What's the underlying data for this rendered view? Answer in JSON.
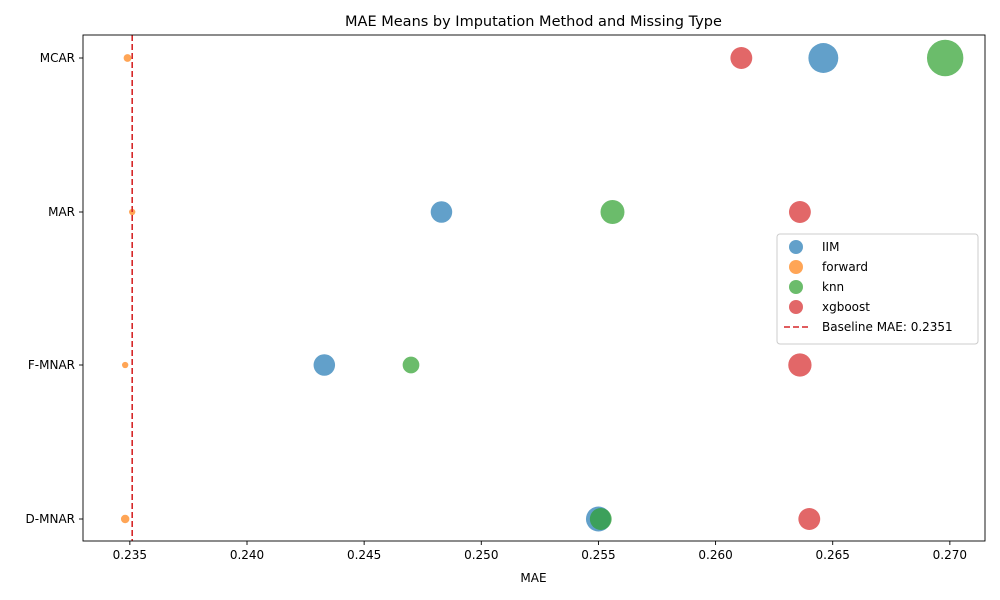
{
  "chart_data": {
    "type": "scatter",
    "title": "MAE Means by Imputation Method and Missing Type",
    "xlabel": "MAE",
    "ylabel": "",
    "xlim": [
      0.233,
      0.2715
    ],
    "x_ticks": [
      "0.235",
      "0.240",
      "0.245",
      "0.250",
      "0.255",
      "0.260",
      "0.265",
      "0.270"
    ],
    "x_tick_values": [
      0.235,
      0.24,
      0.245,
      0.25,
      0.255,
      0.26,
      0.265,
      0.27
    ],
    "categories": [
      "D-MNAR",
      "F-MNAR",
      "MAR",
      "MCAR"
    ],
    "grid": false,
    "legend_placement": "center-right",
    "baseline": {
      "value": 0.2351,
      "label": "Baseline MAE: 0.2351",
      "color": "#d62728"
    },
    "series": [
      {
        "name": "IIM",
        "color": "#1f77b4",
        "points": [
          {
            "category": "MCAR",
            "x": 0.2646,
            "size": 560
          },
          {
            "category": "MAR",
            "x": 0.2483,
            "size": 290
          },
          {
            "category": "F-MNAR",
            "x": 0.2433,
            "size": 290
          },
          {
            "category": "D-MNAR",
            "x": 0.255,
            "size": 390
          }
        ]
      },
      {
        "name": "forward",
        "color": "#ff7f0e",
        "points": [
          {
            "category": "MCAR",
            "x": 0.2349,
            "size": 38
          },
          {
            "category": "MAR",
            "x": 0.2351,
            "size": 25
          },
          {
            "category": "F-MNAR",
            "x": 0.2348,
            "size": 25
          },
          {
            "category": "D-MNAR",
            "x": 0.2348,
            "size": 45
          }
        ]
      },
      {
        "name": "knn",
        "color": "#2ca02c",
        "points": [
          {
            "category": "MCAR",
            "x": 0.2698,
            "size": 830
          },
          {
            "category": "MAR",
            "x": 0.2556,
            "size": 360
          },
          {
            "category": "F-MNAR",
            "x": 0.247,
            "size": 175
          },
          {
            "category": "D-MNAR",
            "x": 0.2551,
            "size": 300
          }
        ]
      },
      {
        "name": "xgboost",
        "color": "#d62728",
        "points": [
          {
            "category": "MCAR",
            "x": 0.2611,
            "size": 300
          },
          {
            "category": "MAR",
            "x": 0.2636,
            "size": 300
          },
          {
            "category": "F-MNAR",
            "x": 0.2636,
            "size": 340
          },
          {
            "category": "D-MNAR",
            "x": 0.264,
            "size": 300
          }
        ]
      }
    ]
  }
}
